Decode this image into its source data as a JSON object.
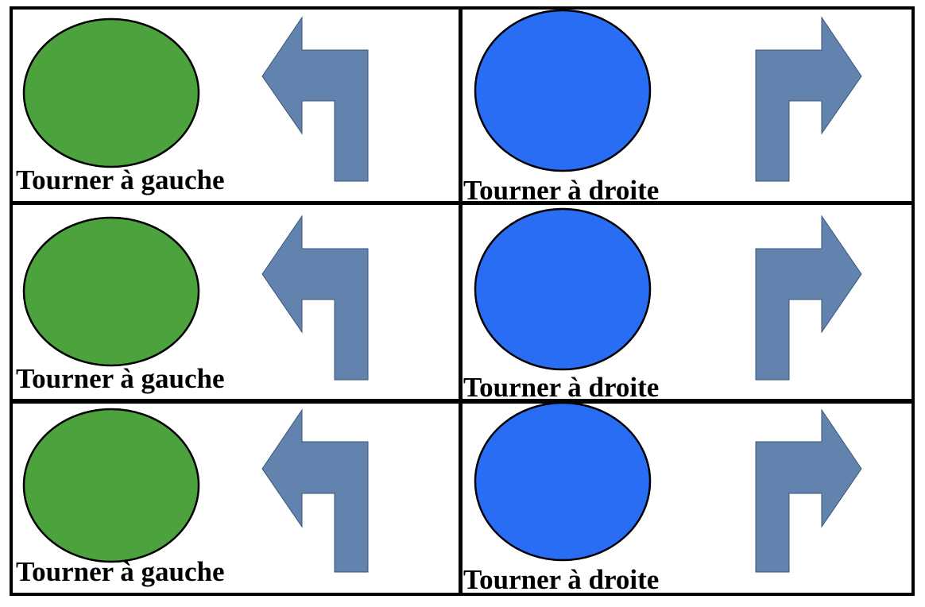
{
  "colors": {
    "left_circle": "#4ca23c",
    "right_circle": "#2a6df5",
    "arrow": "#6283ae",
    "border": "#000000"
  },
  "cards": [
    {
      "side": "left",
      "label": "Tourner à gauche",
      "icon": "turn-left-arrow-icon"
    },
    {
      "side": "right",
      "label": "Tourner à droite",
      "icon": "turn-right-arrow-icon"
    },
    {
      "side": "left",
      "label": "Tourner à gauche",
      "icon": "turn-left-arrow-icon"
    },
    {
      "side": "right",
      "label": "Tourner à droite",
      "icon": "turn-right-arrow-icon"
    },
    {
      "side": "left",
      "label": "Tourner à gauche",
      "icon": "turn-left-arrow-icon"
    },
    {
      "side": "right",
      "label": "Tourner à droite",
      "icon": "turn-right-arrow-icon"
    }
  ]
}
